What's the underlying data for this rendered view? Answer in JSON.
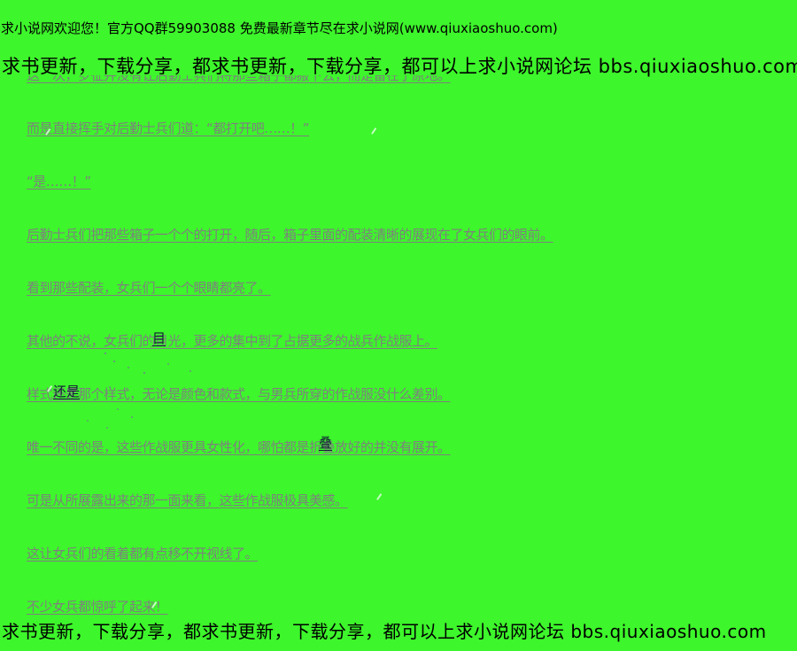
{
  "colors": {
    "background": "#3DF62B",
    "banner_text": "#000000",
    "body_text": "#7F7F7F",
    "anticopy_glyph": "#131C38"
  },
  "banner_top": {
    "line1": "求小说网欢迎您！官方QQ群59903088 免费最新章节尽在求小说网(www.qiuxiaoshuo.com)",
    "line2": "求书更新，下载分享，都求书更新，下载分享，都可以上求小说网论坛 bbs.qiuxiaoshuo.com"
  },
  "banner_bottom": {
    "line1": "求书更新，下载分享，都求书更新，下载分享，都可以上求小说网论坛 bbs.qiuxiaoshuo.com"
  },
  "content": {
    "paragraphs": [
      {
        "text": "这一次，罗征并没有让后勤士兵们将那些箱子都搬下去，而是留在了原地。",
        "hidden_behind_banner": true
      },
      {
        "text": "而是直接挥手对后勤士兵们道：“都打开吧……！”"
      },
      {
        "text": "“是……！”"
      },
      {
        "text": "后勤士兵们把那些箱子一个个的打开，随后，箱子里面的配装清晰的展现在了女兵们的眼前。"
      },
      {
        "text": "看到那些配装，女兵们一个个眼睛都亮了。"
      },
      {
        "text": "其他的不说，女兵们的目光，更多的集中到了占据更多的战兵作战服上。"
      },
      {
        "text": "样式还是那个样式，无论是颜色和款式，与男兵所穿的作战服没什么差别。"
      },
      {
        "text": "唯一不同的是，这些作战服更具女性化，哪怕都是折叠放好的并没有展开。"
      },
      {
        "text": "可是从所展露出来的那一面来看，这些作战服极具美感。"
      },
      {
        "text": "这让女兵们的看着都有点移不开视线了。"
      },
      {
        "text": "不少女兵都惊呼了起来！"
      }
    ]
  },
  "anticopy_overlays": {
    "glyphs": [
      {
        "char": "目"
      },
      {
        "char": "还是"
      },
      {
        "char": "叠"
      }
    ]
  }
}
